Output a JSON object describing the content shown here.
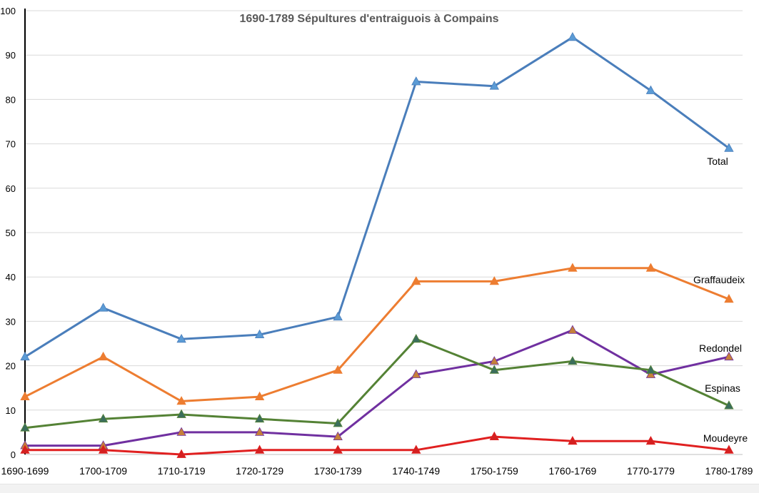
{
  "chart_data": {
    "type": "line",
    "title": "1690-1789 Sépultures d'entraiguois à Compains",
    "xlabel": "",
    "ylabel": "",
    "categories": [
      "1690-1699",
      "1700-1709",
      "1710-1719",
      "1720-1729",
      "1730-1739",
      "1740-1749",
      "1750-1759",
      "1760-1769",
      "1770-1779",
      "1780-1789"
    ],
    "ylim": [
      0,
      100
    ],
    "yticks": [
      0,
      10,
      20,
      30,
      40,
      50,
      60,
      70,
      80,
      90,
      100
    ],
    "grid": true,
    "legend": "inline-right",
    "marker": "triangle",
    "series": [
      {
        "name": "Total",
        "values": [
          22,
          33,
          26,
          27,
          31,
          84,
          83,
          94,
          82,
          69
        ],
        "color": "#4a7ebb",
        "marker_color": "#5b9bd5"
      },
      {
        "name": "Graffaudeix",
        "values": [
          13,
          22,
          12,
          13,
          19,
          39,
          39,
          42,
          42,
          35
        ],
        "color": "#ed7d31",
        "marker_color": "#ed7d31"
      },
      {
        "name": "Redondel",
        "values": [
          2,
          2,
          5,
          5,
          4,
          18,
          21,
          28,
          18,
          22
        ],
        "color": "#7030a0",
        "marker_color": "#c5803a"
      },
      {
        "name": "Espinas",
        "values": [
          6,
          8,
          9,
          8,
          7,
          26,
          19,
          21,
          19,
          11
        ],
        "color": "#548235",
        "marker_color": "#3b6e5c"
      },
      {
        "name": "Moudeyre",
        "values": [
          1,
          1,
          0,
          1,
          1,
          1,
          4,
          3,
          3,
          1
        ],
        "color": "#e02020",
        "marker_color": "#d42020"
      }
    ]
  }
}
